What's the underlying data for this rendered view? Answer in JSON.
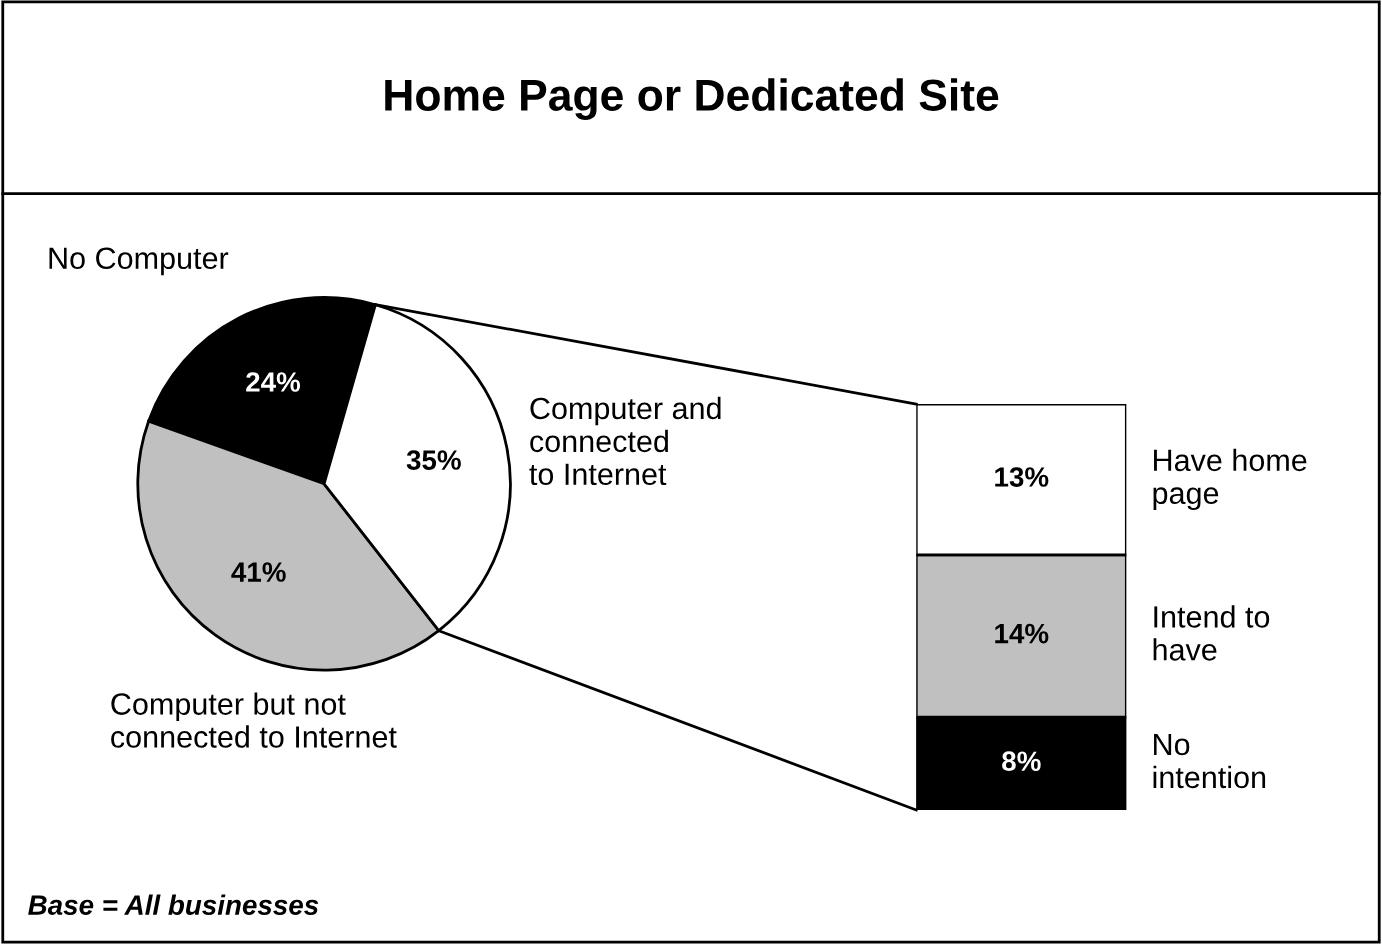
{
  "chart_data": [
    {
      "type": "pie",
      "title": "Home Page or Dedicated Site",
      "categories": [
        "No Computer",
        "Computer but not\nconnected to Internet",
        "Computer and\nconnected\nto Internet"
      ],
      "values": [
        24,
        41,
        35
      ],
      "value_labels": [
        "24%",
        "41%",
        "35%"
      ],
      "colors": [
        "#000000",
        "#c0c0c0",
        "#ffffff"
      ],
      "annotations": [
        "Base = All businesses"
      ]
    },
    {
      "type": "bar",
      "stacked": true,
      "categories": [
        null
      ],
      "series": [
        {
          "name": "No\nintention",
          "color": "#000000",
          "values": [
            8
          ],
          "value_labels": [
            "8%"
          ]
        },
        {
          "name": "Intend to\nhave",
          "color": "#c0c0c0",
          "values": [
            14
          ],
          "value_labels": [
            "14%"
          ]
        },
        {
          "name": "Have home\npage",
          "color": "#ffffff",
          "values": [
            13
          ],
          "value_labels": [
            "13%"
          ]
        }
      ]
    }
  ]
}
